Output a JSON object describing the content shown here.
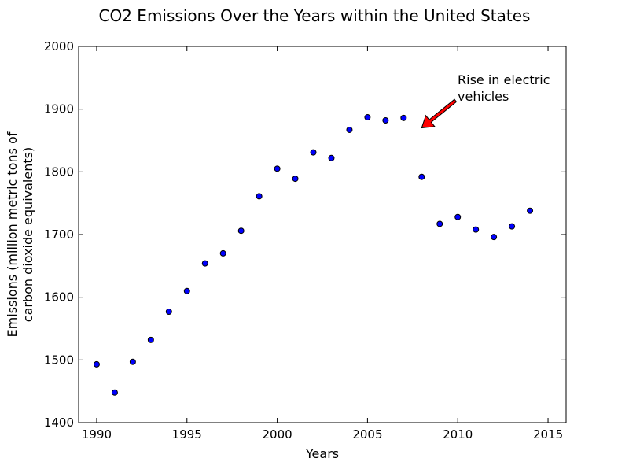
{
  "chart_data": {
    "type": "scatter",
    "title": "CO2 Emissions Over the Years within the United States",
    "xlabel": "Years",
    "ylabel_lines": [
      "Emissions (million metric tons of",
      "carbon dioxide equivalents)"
    ],
    "xlim": [
      1989,
      2016
    ],
    "ylim": [
      1400,
      2000
    ],
    "xticks": [
      1990,
      1995,
      2000,
      2005,
      2010,
      2015
    ],
    "yticks": [
      1400,
      1500,
      1600,
      1700,
      1800,
      1900,
      2000
    ],
    "grid": false,
    "series": [
      {
        "color": "#0000ff",
        "x": [
          1990,
          1991,
          1992,
          1993,
          1994,
          1995,
          1996,
          1997,
          1998,
          1999,
          2000,
          2001,
          2002,
          2003,
          2004,
          2005,
          2006,
          2007,
          2008,
          2009,
          2010,
          2011,
          2012,
          2013,
          2014
        ],
        "y": [
          1493,
          1448,
          1497,
          1532,
          1577,
          1610,
          1654,
          1670,
          1706,
          1761,
          1805,
          1789,
          1831,
          1822,
          1867,
          1887,
          1882,
          1886,
          1792,
          1717,
          1728,
          1708,
          1696,
          1713,
          1738
        ]
      }
    ],
    "annotations": [
      {
        "text_lines": [
          "Rise in electric",
          "vehicles"
        ],
        "point": [
          2008,
          1870
        ],
        "text_anchor": [
          2010,
          1915
        ],
        "arrow_color": "#ff0000"
      }
    ]
  }
}
